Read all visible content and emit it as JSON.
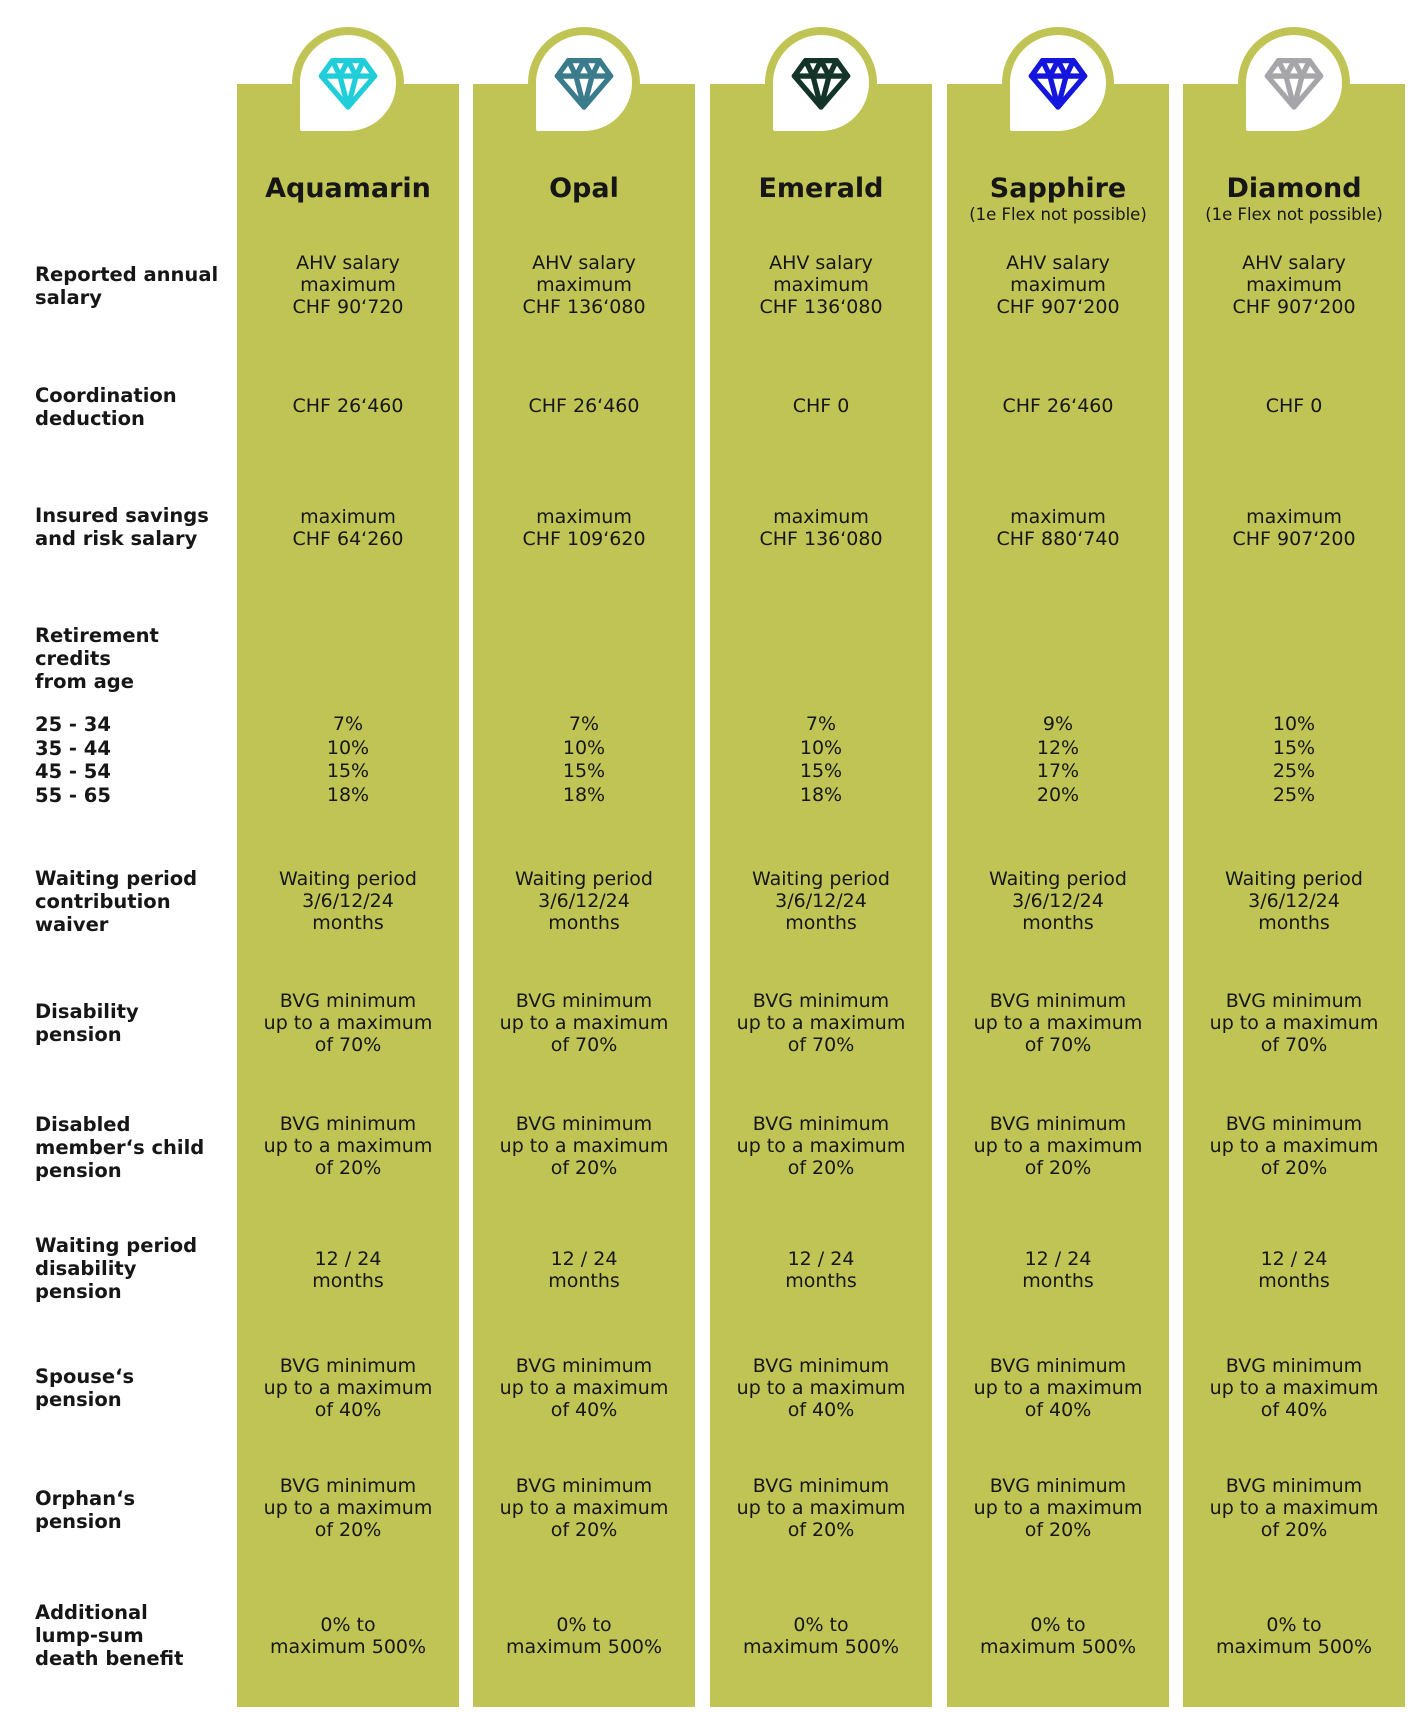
{
  "colors": {
    "olive": "#c0c454",
    "text": "#161616",
    "white": "#ffffff",
    "gem_aquamarin": "#1fced8",
    "gem_opal": "#3a7b8c",
    "gem_emerald": "#143429",
    "gem_sapphire": "#1415dd",
    "gem_diamond": "#a6a6aa"
  },
  "row_labels": [
    {
      "key": "reported-annual-salary",
      "text": "Reported annual\nsalary"
    },
    {
      "key": "coordination-deduction",
      "text": "Coordination\ndeduction"
    },
    {
      "key": "insured-savings-risk-salary",
      "text": "Insured savings\nand risk salary"
    },
    {
      "key": "retirement-credits-from-age",
      "text": "Retirement\ncredits\nfrom age"
    },
    {
      "key": "age-bands",
      "text": "25 - 34\n35 - 44\n45 - 54\n55 - 65"
    },
    {
      "key": "waiting-period-contribution-waiver",
      "text": "Waiting period\ncontribution\nwaiver"
    },
    {
      "key": "disability-pension",
      "text": "Disability\npension"
    },
    {
      "key": "disabled-members-child-pension",
      "text": "Disabled\nmember‘s child\npension"
    },
    {
      "key": "waiting-period-disability-pension",
      "text": "Waiting period\ndisability\npension"
    },
    {
      "key": "spouses-pension",
      "text": "Spouse‘s\npension"
    },
    {
      "key": "orphans-pension",
      "text": "Orphan‘s\npension"
    },
    {
      "key": "additional-lump-sum-death-benefit",
      "text": "Additional\nlump-sum\ndeath benefit"
    }
  ],
  "columns": [
    {
      "name": "Aquamarin",
      "subtitle": "",
      "gem_color": "#1fced8",
      "cells": [
        "AHV salary\nmaximum\nCHF 90‘720",
        "CHF 26‘460",
        "maximum\nCHF 64‘260",
        "7%\n10%\n15%\n18%",
        "Waiting period\n3/6/12/24\nmonths",
        "BVG minimum\nup to a maximum\nof 70%",
        "BVG minimum\nup to a maximum\nof 20%",
        "12 / 24\nmonths",
        "BVG minimum\nup to a maximum\nof 40%",
        "BVG minimum\nup to a maximum\nof 20%",
        "0% to\nmaximum 500%"
      ]
    },
    {
      "name": "Opal",
      "subtitle": "",
      "gem_color": "#3a7b8c",
      "cells": [
        "AHV salary\nmaximum\nCHF 136‘080",
        "CHF 26‘460",
        "maximum\nCHF 109‘620",
        "7%\n10%\n15%\n18%",
        "Waiting period\n3/6/12/24\nmonths",
        "BVG minimum\nup to a maximum\nof 70%",
        "BVG minimum\nup to a maximum\nof 20%",
        "12 / 24\nmonths",
        "BVG minimum\nup to a maximum\nof 40%",
        "BVG minimum\nup to a maximum\nof 20%",
        "0% to\nmaximum 500%"
      ]
    },
    {
      "name": "Emerald",
      "subtitle": "",
      "gem_color": "#143429",
      "cells": [
        "AHV salary\nmaximum\nCHF 136‘080",
        "CHF 0",
        "maximum\nCHF 136‘080",
        "7%\n10%\n15%\n18%",
        "Waiting period\n3/6/12/24\nmonths",
        "BVG minimum\nup to a maximum\nof 70%",
        "BVG minimum\nup to a maximum\nof 20%",
        "12 / 24\nmonths",
        "BVG minimum\nup to a maximum\nof 40%",
        "BVG minimum\nup to a maximum\nof 20%",
        "0% to\nmaximum 500%"
      ]
    },
    {
      "name": "Sapphire",
      "subtitle": "(1e Flex not possible)",
      "gem_color": "#1415dd",
      "cells": [
        "AHV salary\nmaximum\nCHF 907‘200",
        "CHF 26‘460",
        "maximum\nCHF 880‘740",
        "9%\n12%\n17%\n20%",
        "Waiting period\n3/6/12/24\nmonths",
        "BVG minimum\nup to a maximum\nof 70%",
        "BVG minimum\nup to a maximum\nof 20%",
        "12 / 24\nmonths",
        "BVG minimum\nup to a maximum\nof 40%",
        "BVG minimum\nup to a maximum\nof 20%",
        "0% to\nmaximum 500%"
      ]
    },
    {
      "name": "Diamond",
      "subtitle": "(1e Flex not possible)",
      "gem_color": "#a6a6aa",
      "cells": [
        "AHV salary\nmaximum\nCHF 907‘200",
        "CHF 0",
        "maximum\nCHF 907‘200",
        "10%\n15%\n25%\n25%",
        "Waiting period\n3/6/12/24\nmonths",
        "BVG minimum\nup to a maximum\nof 70%",
        "BVG minimum\nup to a maximum\nof 20%",
        "12 / 24\nmonths",
        "BVG minimum\nup to a maximum\nof 40%",
        "BVG minimum\nup to a maximum\nof 20%",
        "0% to\nmaximum 500%"
      ]
    }
  ]
}
